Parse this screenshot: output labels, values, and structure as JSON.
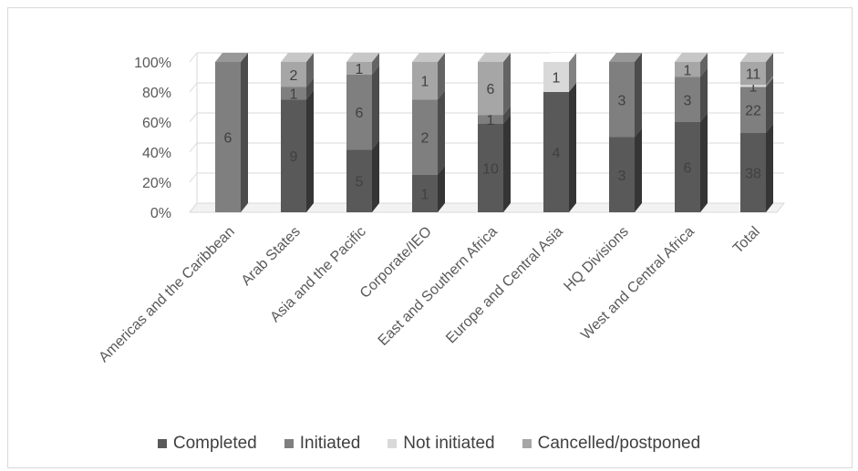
{
  "chart_data": {
    "type": "bar",
    "stacked": true,
    "percent_stacked": true,
    "style": "3d",
    "categories": [
      "Americas and the Caribbean",
      "Arab States",
      "Asia and the Pacific",
      "Corporate/IEO",
      "East and Southern Africa",
      "Europe and Central Asia",
      "HQ Divisions",
      "West and Central Africa",
      "Total"
    ],
    "series": [
      {
        "name": "Completed",
        "values": [
          0,
          9,
          5,
          1,
          10,
          4,
          3,
          6,
          38
        ],
        "color": "#595959"
      },
      {
        "name": "Initiated",
        "values": [
          6,
          1,
          6,
          2,
          1,
          0,
          3,
          3,
          22
        ],
        "color": "#7f7f7f"
      },
      {
        "name": "Not initiated",
        "values": [
          0,
          0,
          0,
          0,
          0,
          1,
          0,
          0,
          1
        ],
        "color": "#d9d9d9"
      },
      {
        "name": "Cancelled/postponed",
        "values": [
          0,
          2,
          1,
          1,
          6,
          0,
          0,
          1,
          11
        ],
        "color": "#a6a6a6"
      }
    ],
    "y_ticks": [
      "0%",
      "20%",
      "40%",
      "60%",
      "80%",
      "100%"
    ],
    "ylim": [
      0,
      100
    ],
    "grid": true,
    "legend_position": "bottom",
    "title": "",
    "xlabel": "",
    "ylabel": ""
  }
}
